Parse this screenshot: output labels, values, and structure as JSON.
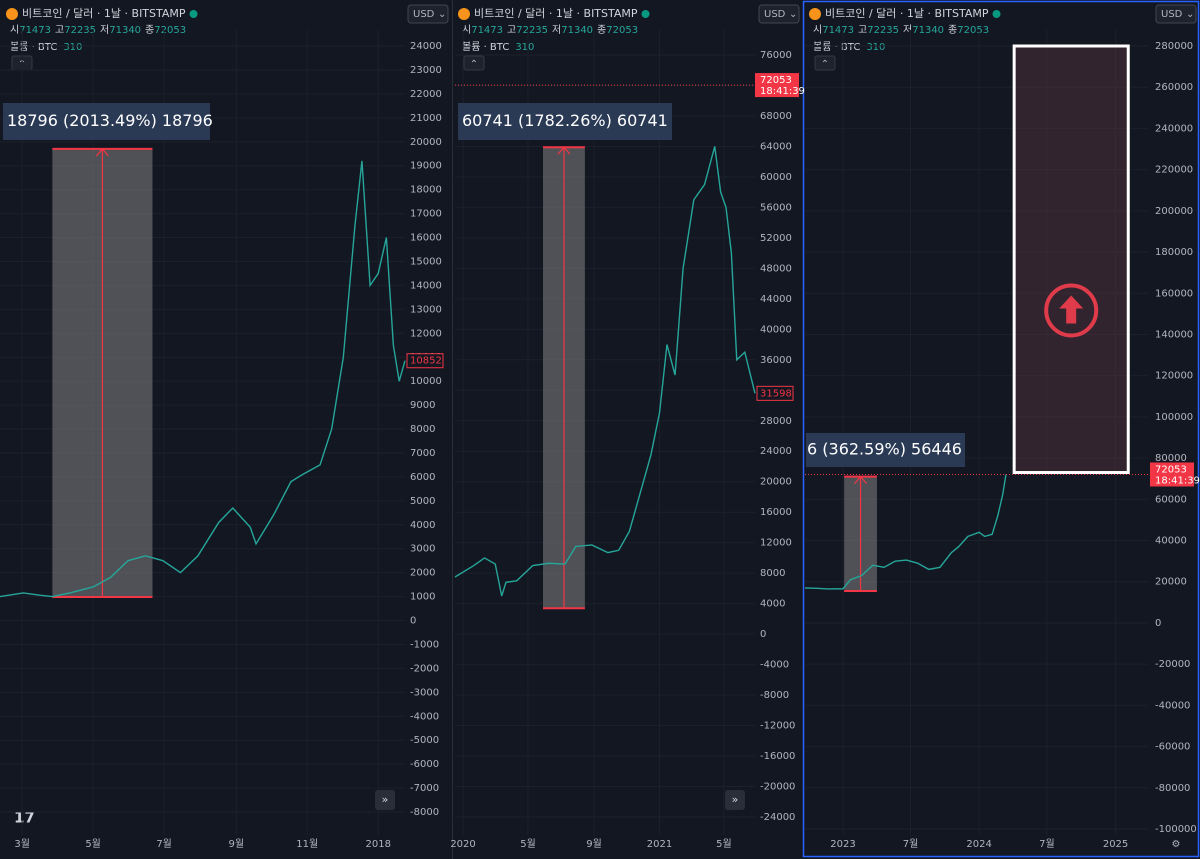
{
  "header": {
    "symbol": "비트코인 / 달러 · 1날 · BITSTAMP",
    "currency": "USD",
    "ohlc": [
      {
        "label": "시",
        "value": 71473
      },
      {
        "label": "고",
        "value": 72235
      },
      {
        "label": "저",
        "value": 71340
      },
      {
        "label": "종",
        "value": 72053
      }
    ],
    "volume_label": "볼륨 · BTC",
    "volume": 310
  },
  "chart_data": [
    {
      "type": "line",
      "color": "#26a69a",
      "x": [
        40,
        60,
        75,
        85,
        100,
        120,
        135,
        150,
        165,
        180,
        195,
        210,
        228,
        240,
        255,
        260,
        275,
        290,
        300,
        315,
        325,
        335,
        345,
        351,
        358,
        365,
        372,
        378,
        383,
        388
      ],
      "values": [
        1000,
        1150,
        1050,
        1000,
        1150,
        1400,
        1800,
        2500,
        2700,
        2500,
        2000,
        2700,
        4100,
        4700,
        3900,
        3200,
        4400,
        5800,
        6100,
        6500,
        8000,
        11000,
        16500,
        19200,
        14000,
        14500,
        16000,
        11500,
        10000,
        10852
      ],
      "xlim": [
        40,
        388
      ],
      "xticks": [
        {
          "value": 59,
          "label": "3월"
        },
        {
          "value": 120,
          "label": "5월"
        },
        {
          "value": 181,
          "label": "7월"
        },
        {
          "value": 243,
          "label": "9월"
        },
        {
          "value": 304,
          "label": "11월"
        },
        {
          "value": 365,
          "label": "2018"
        }
      ],
      "ylim": [
        -8000,
        24000
      ],
      "yticks": [
        -8000,
        -7000,
        -6000,
        -5000,
        -4000,
        -3000,
        -2000,
        -1000,
        0,
        1000,
        2000,
        3000,
        4000,
        5000,
        6000,
        7000,
        8000,
        9000,
        10000,
        11000,
        12000,
        13000,
        14000,
        15000,
        16000,
        17000,
        18000,
        19000,
        20000,
        21000,
        22000,
        23000,
        24000
      ],
      "measure": {
        "xrange": [
          85,
          171
        ],
        "range": [
          980,
          19700
        ],
        "label": "18796 (2013.49%) 18796"
      }
    },
    {
      "type": "line",
      "color": "#26a69a",
      "x": [
        -15,
        20,
        40,
        60,
        72,
        80,
        100,
        130,
        160,
        190,
        210,
        240,
        270,
        290,
        310,
        330,
        350,
        366,
        380,
        395,
        410,
        430,
        450,
        469,
        480,
        490,
        500,
        510,
        525,
        544
      ],
      "values": [
        7500,
        9000,
        10000,
        9200,
        5000,
        6800,
        7000,
        9000,
        9300,
        9200,
        11500,
        11700,
        10700,
        11000,
        13500,
        18500,
        23500,
        29000,
        38000,
        34000,
        48000,
        57000,
        59000,
        64000,
        58000,
        56000,
        50000,
        36000,
        37000,
        31598
      ],
      "xlim": [
        -15,
        544
      ],
      "xticks": [
        {
          "value": 0,
          "label": "2020"
        },
        {
          "value": 121,
          "label": "5월"
        },
        {
          "value": 244,
          "label": "9월"
        },
        {
          "value": 366,
          "label": "2021"
        },
        {
          "value": 486,
          "label": "5월"
        }
      ],
      "ylim": [
        -24000,
        76000
      ],
      "yticks": [
        -24000,
        -20000,
        -16000,
        -12000,
        -8000,
        -4000,
        0,
        4000,
        8000,
        12000,
        16000,
        20000,
        24000,
        28000,
        32000,
        36000,
        40000,
        44000,
        48000,
        52000,
        56000,
        60000,
        64000,
        68000,
        72000,
        76000
      ],
      "measure": {
        "xrange": [
          149,
          227
        ],
        "range": [
          3400,
          63900
        ],
        "label": "60741 (1782.26%) 60741"
      },
      "last_price": 72053,
      "last_time": "18:41:39"
    },
    {
      "type": "line",
      "color": "#26a69a",
      "x": [
        -102,
        -70,
        -40,
        0,
        20,
        50,
        80,
        110,
        140,
        170,
        200,
        230,
        260,
        290,
        310,
        335,
        350,
        365,
        380,
        400,
        415,
        428,
        437
      ],
      "values": [
        17000,
        16800,
        16500,
        16600,
        21000,
        23000,
        28000,
        27000,
        30000,
        30500,
        29000,
        26000,
        27000,
        34000,
        37000,
        42000,
        43000,
        44000,
        42000,
        43000,
        52000,
        62000,
        72053
      ],
      "xlim": [
        -102,
        818
      ],
      "xticks": [
        {
          "value": 0,
          "label": "2023"
        },
        {
          "value": 181,
          "label": "7월"
        },
        {
          "value": 365,
          "label": "2024"
        },
        {
          "value": 547,
          "label": "7월"
        },
        {
          "value": 731,
          "label": "2025"
        }
      ],
      "ylim": [
        -100000,
        280000
      ],
      "yticks": [
        -100000,
        -80000,
        -60000,
        -40000,
        -20000,
        0,
        20000,
        40000,
        60000,
        80000,
        100000,
        120000,
        140000,
        160000,
        180000,
        200000,
        220000,
        240000,
        260000,
        280000
      ],
      "measure": {
        "xrange": [
          3,
          91
        ],
        "range": [
          15500,
          71000
        ],
        "label": "6 (362.59%) 56446"
      },
      "target": {
        "xrange": [
          459,
          765
        ],
        "range": [
          73000,
          280000
        ]
      },
      "last_price": 72053,
      "last_time": "18:41:39"
    }
  ]
}
